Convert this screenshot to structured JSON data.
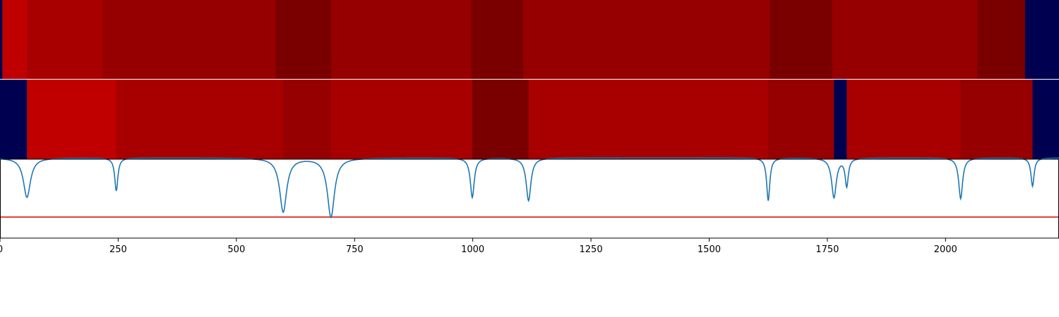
{
  "chart_data": [
    {
      "type": "heatmap",
      "panel": "top-strip",
      "x_range": [
        0,
        2240
      ],
      "segments": [
        {
          "start": 0,
          "end": 5,
          "color": "#000050"
        },
        {
          "start": 5,
          "end": 57,
          "color": "#c00000"
        },
        {
          "start": 57,
          "end": 217,
          "color": "#a80000"
        },
        {
          "start": 217,
          "end": 583,
          "color": "#960000"
        },
        {
          "start": 583,
          "end": 701,
          "color": "#7a0000"
        },
        {
          "start": 701,
          "end": 997,
          "color": "#960000"
        },
        {
          "start": 997,
          "end": 1107,
          "color": "#7a0000"
        },
        {
          "start": 1107,
          "end": 1628,
          "color": "#960000"
        },
        {
          "start": 1628,
          "end": 1760,
          "color": "#7a0000"
        },
        {
          "start": 1760,
          "end": 2067,
          "color": "#960000"
        },
        {
          "start": 2067,
          "end": 2168,
          "color": "#7a0000"
        },
        {
          "start": 2168,
          "end": 2240,
          "color": "#000050"
        }
      ]
    },
    {
      "type": "heatmap",
      "panel": "middle-strip",
      "x_range": [
        0,
        2240
      ],
      "segments": [
        {
          "start": 0,
          "end": 57,
          "color": "#000050"
        },
        {
          "start": 57,
          "end": 246,
          "color": "#c00000"
        },
        {
          "start": 246,
          "end": 599,
          "color": "#a80000"
        },
        {
          "start": 599,
          "end": 700,
          "color": "#960000"
        },
        {
          "start": 700,
          "end": 999,
          "color": "#a80000"
        },
        {
          "start": 999,
          "end": 1118,
          "color": "#7a0000"
        },
        {
          "start": 1118,
          "end": 1625,
          "color": "#a80000"
        },
        {
          "start": 1625,
          "end": 1764,
          "color": "#960000"
        },
        {
          "start": 1764,
          "end": 1791,
          "color": "#000050"
        },
        {
          "start": 1791,
          "end": 2032,
          "color": "#a80000"
        },
        {
          "start": 2032,
          "end": 2184,
          "color": "#960000"
        },
        {
          "start": 2184,
          "end": 2240,
          "color": "#000050"
        }
      ]
    },
    {
      "type": "line",
      "panel": "signal",
      "xlim": [
        0,
        2240
      ],
      "ylim": [
        -1.1,
        0.1
      ],
      "threshold": -0.78,
      "series_color": "#1f77b4",
      "threshold_color": "#e00000",
      "dips": [
        {
          "center": 57,
          "depth": 0.6,
          "width": 9
        },
        {
          "center": 246,
          "depth": 0.5,
          "width": 4
        },
        {
          "center": 599,
          "depth": 0.82,
          "width": 9
        },
        {
          "center": 700,
          "depth": 0.9,
          "width": 9
        },
        {
          "center": 999,
          "depth": 0.6,
          "width": 5
        },
        {
          "center": 1118,
          "depth": 0.65,
          "width": 6
        },
        {
          "center": 1625,
          "depth": 0.65,
          "width": 4
        },
        {
          "center": 1764,
          "depth": 0.6,
          "width": 6
        },
        {
          "center": 1791,
          "depth": 0.42,
          "width": 4
        },
        {
          "center": 2032,
          "depth": 0.62,
          "width": 5
        },
        {
          "center": 2184,
          "depth": 0.43,
          "width": 4
        }
      ],
      "xticks": [
        0,
        250,
        500,
        750,
        1000,
        1250,
        1500,
        1750,
        2000
      ],
      "xtick_labels": [
        "0",
        "250",
        "500",
        "750",
        "1000",
        "1250",
        "1500",
        "1750",
        "2000"
      ]
    }
  ]
}
